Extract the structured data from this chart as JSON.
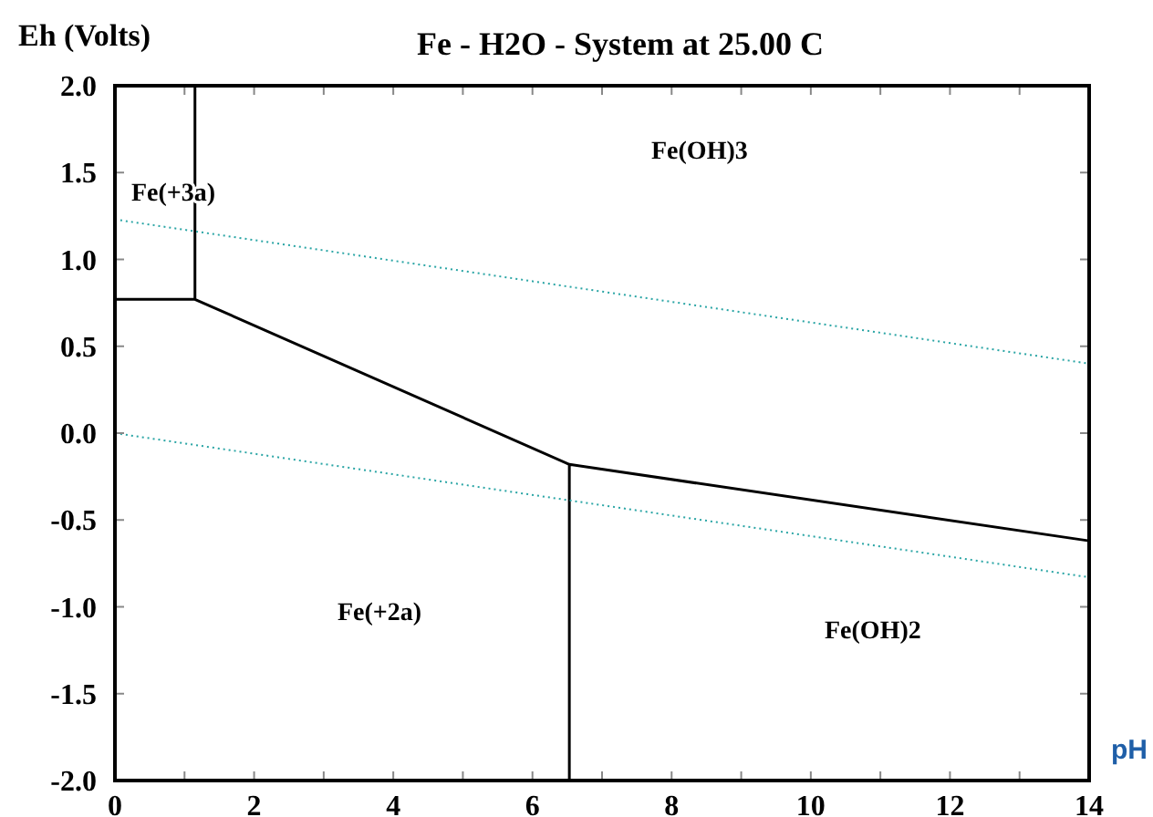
{
  "chart_data": {
    "type": "line",
    "title": "Fe - H2O - System at 25.00 C",
    "xlabel": "pH",
    "ylabel": "Eh (Volts)",
    "xlim": [
      0,
      14
    ],
    "ylim": [
      -2,
      2
    ],
    "xticks": [
      0,
      {
        "value": 1,
        "label": null
      },
      2,
      {
        "value": 3,
        "label": null
      },
      4,
      {
        "value": 5,
        "label": null
      },
      6,
      {
        "value": 7,
        "label": null
      },
      8,
      {
        "value": 9,
        "label": null
      },
      10,
      {
        "value": 11,
        "label": null
      },
      12,
      {
        "value": 13,
        "label": null
      },
      14
    ],
    "yticks": [
      {
        "value": -2,
        "label": "-2.0"
      },
      {
        "value": -1.5,
        "label": "-1.5"
      },
      {
        "value": -1,
        "label": "-1.0"
      },
      {
        "value": -0.5,
        "label": "-0.5"
      },
      {
        "value": 0,
        "label": "0.0"
      },
      {
        "value": 0.5,
        "label": "0.5"
      },
      {
        "value": 1,
        "label": "1.0"
      },
      {
        "value": 1.5,
        "label": "1.5"
      },
      {
        "value": 2,
        "label": "2.0"
      }
    ],
    "grid": false,
    "marker": "none",
    "series": [
      {
        "color": "#000000",
        "x": [
          0,
          1.15,
          6.53,
          14,
          null,
          1.15,
          1.15,
          null,
          6.53,
          6.53
        ],
        "values": [
          0.77,
          0.77,
          -0.18,
          -0.62,
          null,
          0.77,
          2.0,
          null,
          -0.18,
          -2.0
        ]
      },
      {
        "color": "#2aa5a5",
        "line_style": "dotted",
        "x": [
          0,
          14
        ],
        "values": [
          1.23,
          0.4
        ]
      },
      {
        "color": "#2aa5a5",
        "line_style": "dotted",
        "x": [
          0,
          14
        ],
        "values": [
          0,
          -0.83
        ]
      }
    ],
    "annotations": [
      "Fe(+3a)",
      "Fe(OH)3",
      "Fe(+2a)",
      "Fe(OH)2"
    ]
  }
}
